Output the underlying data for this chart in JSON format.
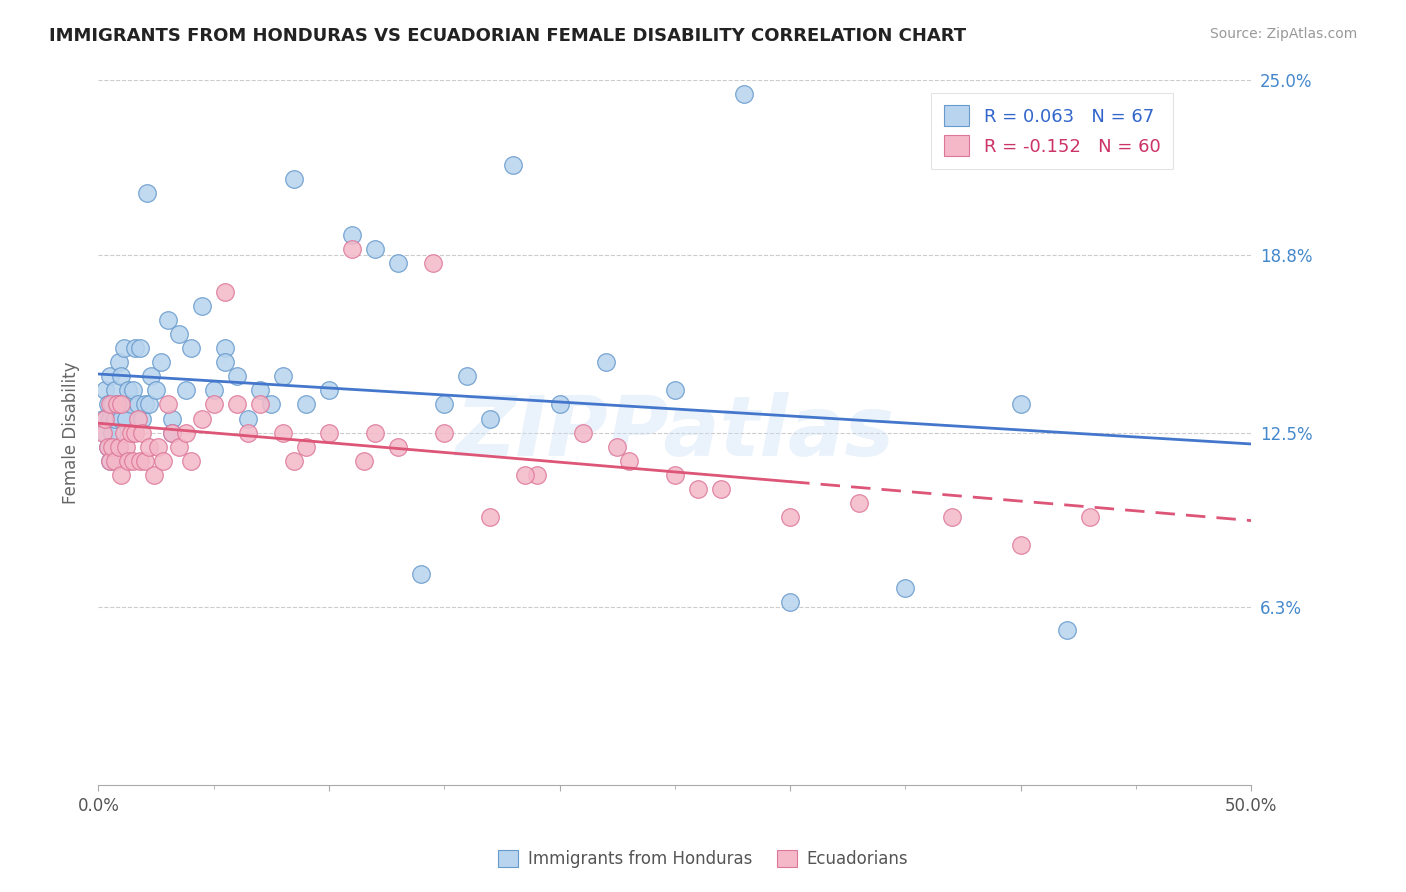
{
  "title": "IMMIGRANTS FROM HONDURAS VS ECUADORIAN FEMALE DISABILITY CORRELATION CHART",
  "source": "Source: ZipAtlas.com",
  "ylabel": "Female Disability",
  "xlim": [
    0.0,
    50.0
  ],
  "ylim": [
    0.0,
    25.0
  ],
  "xtick_values": [
    0,
    10,
    20,
    30,
    40,
    50
  ],
  "xtick_labels_show": [
    "0.0%",
    "",
    "",
    "",
    "",
    "50.0%"
  ],
  "ytick_values": [
    6.3,
    12.5,
    18.8,
    25.0
  ],
  "ytick_labels": [
    "6.3%",
    "12.5%",
    "18.8%",
    "25.0%"
  ],
  "blue_R": 0.063,
  "blue_N": 67,
  "pink_R": -0.152,
  "pink_N": 60,
  "blue_fill": "#b8d4ee",
  "blue_edge": "#6699cc",
  "pink_fill": "#f4b8c8",
  "pink_edge": "#dd7799",
  "blue_line_color": "#4477cc",
  "pink_line_color": "#dd5577",
  "watermark": "ZIPPatlas",
  "blue_x": [
    0.2,
    0.3,
    0.3,
    0.4,
    0.4,
    0.5,
    0.5,
    0.5,
    0.6,
    0.6,
    0.7,
    0.7,
    0.8,
    0.9,
    0.9,
    1.0,
    1.0,
    1.1,
    1.1,
    1.2,
    1.3,
    1.4,
    1.5,
    1.6,
    1.7,
    1.8,
    1.9,
    2.0,
    2.1,
    2.2,
    2.3,
    2.5,
    2.7,
    3.0,
    3.2,
    3.5,
    3.8,
    4.0,
    4.5,
    5.0,
    5.5,
    6.0,
    6.5,
    7.0,
    7.5,
    8.0,
    9.0,
    10.0,
    11.0,
    12.0,
    14.0,
    16.0,
    18.0,
    20.0,
    25.0,
    28.0,
    35.0,
    40.0,
    42.0,
    15.0,
    17.0,
    22.0,
    30.0,
    5.5,
    3.2,
    8.5,
    13.0
  ],
  "blue_y": [
    13.0,
    12.5,
    14.0,
    12.0,
    13.5,
    11.5,
    13.0,
    14.5,
    12.5,
    13.5,
    13.0,
    14.0,
    13.5,
    12.0,
    15.0,
    13.0,
    14.5,
    13.5,
    15.5,
    13.0,
    14.0,
    13.5,
    14.0,
    15.5,
    13.5,
    15.5,
    13.0,
    13.5,
    21.0,
    13.5,
    14.5,
    14.0,
    15.0,
    16.5,
    13.0,
    16.0,
    14.0,
    15.5,
    17.0,
    14.0,
    15.5,
    14.5,
    13.0,
    14.0,
    13.5,
    14.5,
    13.5,
    14.0,
    19.5,
    19.0,
    7.5,
    14.5,
    22.0,
    13.5,
    14.0,
    24.5,
    7.0,
    13.5,
    5.5,
    13.5,
    13.0,
    15.0,
    6.5,
    15.0,
    12.5,
    21.5,
    18.5
  ],
  "pink_x": [
    0.2,
    0.3,
    0.4,
    0.5,
    0.5,
    0.6,
    0.7,
    0.8,
    0.9,
    1.0,
    1.0,
    1.1,
    1.2,
    1.3,
    1.4,
    1.5,
    1.6,
    1.7,
    1.8,
    1.9,
    2.0,
    2.2,
    2.4,
    2.6,
    2.8,
    3.0,
    3.2,
    3.5,
    3.8,
    4.0,
    4.5,
    5.0,
    5.5,
    6.0,
    6.5,
    7.0,
    8.0,
    9.0,
    10.0,
    11.0,
    12.0,
    13.0,
    15.0,
    17.0,
    19.0,
    21.0,
    23.0,
    25.0,
    27.0,
    30.0,
    33.0,
    37.0,
    40.0,
    43.0,
    14.5,
    18.5,
    22.5,
    26.0,
    8.5,
    11.5
  ],
  "pink_y": [
    12.5,
    13.0,
    12.0,
    11.5,
    13.5,
    12.0,
    11.5,
    13.5,
    12.0,
    11.0,
    13.5,
    12.5,
    12.0,
    11.5,
    12.5,
    11.5,
    12.5,
    13.0,
    11.5,
    12.5,
    11.5,
    12.0,
    11.0,
    12.0,
    11.5,
    13.5,
    12.5,
    12.0,
    12.5,
    11.5,
    13.0,
    13.5,
    17.5,
    13.5,
    12.5,
    13.5,
    12.5,
    12.0,
    12.5,
    19.0,
    12.5,
    12.0,
    12.5,
    9.5,
    11.0,
    12.5,
    11.5,
    11.0,
    10.5,
    9.5,
    10.0,
    9.5,
    8.5,
    9.5,
    18.5,
    11.0,
    12.0,
    10.5,
    11.5,
    11.5
  ]
}
